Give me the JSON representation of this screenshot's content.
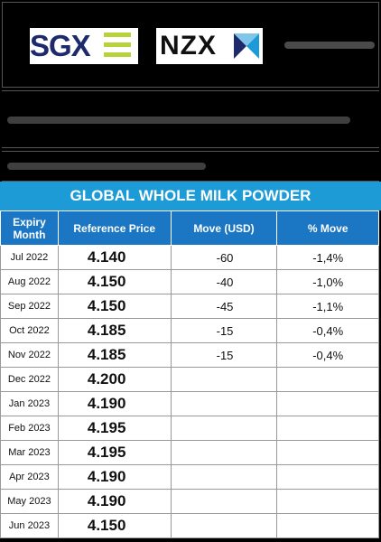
{
  "logos": {
    "sgx_text": "SGX",
    "nzx_text": "NZX"
  },
  "title": "GLOBAL WHOLE MILK POWDER",
  "table": {
    "headers": {
      "month_line1": "Expiry",
      "month_line2": "Month",
      "ref_price": "Reference Price",
      "move_usd": "Move (USD)",
      "pct_move": "% Move"
    },
    "rows": [
      {
        "month": "Jul 2022",
        "price": "4.140",
        "move": "-60",
        "pct": "-1,4%"
      },
      {
        "month": "Aug 2022",
        "price": "4.150",
        "move": "-40",
        "pct": "-1,0%"
      },
      {
        "month": "Sep 2022",
        "price": "4.150",
        "move": "-45",
        "pct": "-1,1%"
      },
      {
        "month": "Oct 2022",
        "price": "4.185",
        "move": "-15",
        "pct": "-0,4%"
      },
      {
        "month": "Nov 2022",
        "price": "4.185",
        "move": "-15",
        "pct": "-0,4%"
      },
      {
        "month": "Dec 2022",
        "price": "4.200",
        "move": "",
        "pct": ""
      },
      {
        "month": "Jan 2023",
        "price": "4.190",
        "move": "",
        "pct": ""
      },
      {
        "month": "Feb 2023",
        "price": "4.195",
        "move": "",
        "pct": ""
      },
      {
        "month": "Mar 2023",
        "price": "4.195",
        "move": "",
        "pct": ""
      },
      {
        "month": "Apr 2023",
        "price": "4.190",
        "move": "",
        "pct": ""
      },
      {
        "month": "May 2023",
        "price": "4.190",
        "move": "",
        "pct": ""
      },
      {
        "month": "Jun 2023",
        "price": "4.150",
        "move": "",
        "pct": ""
      }
    ]
  },
  "colors": {
    "title_bg": "#1c9bd6",
    "header_bg": "#1b76c4",
    "sgx_navy": "#1d2a6b",
    "sgx_green": "#b8d33a"
  }
}
